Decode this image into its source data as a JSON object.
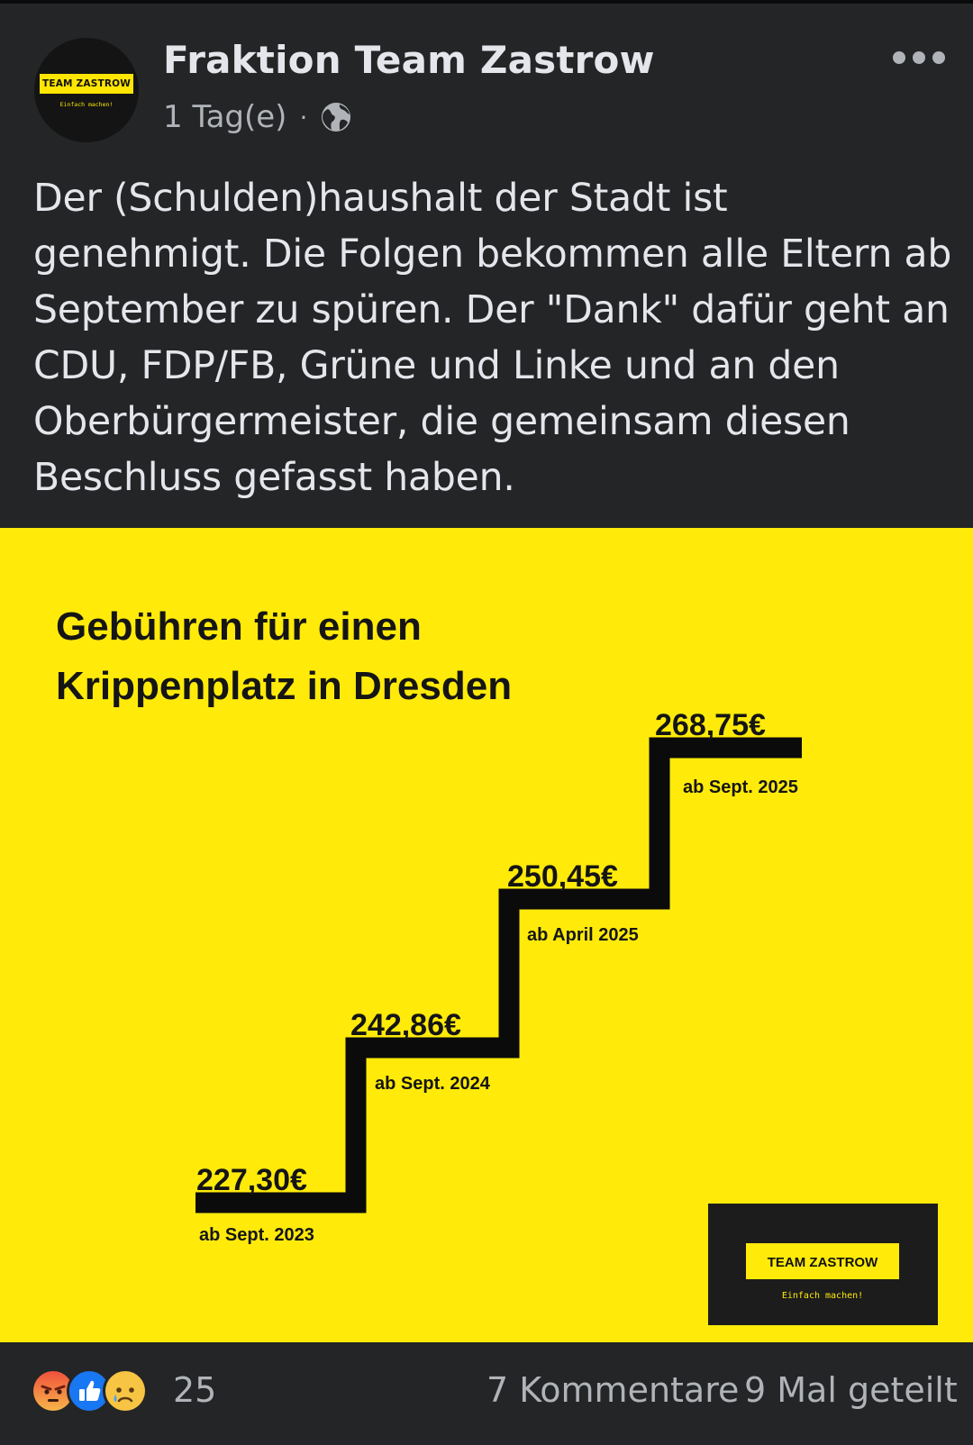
{
  "post": {
    "author": "Fraktion Team Zastrow",
    "time": "1 Tag(e)",
    "separator": "·",
    "audience_icon": "globe-icon",
    "avatar": {
      "badge": "TEAM ZASTROW",
      "tagline": "Einfach machen!"
    },
    "text": "Der (Schulden)haushalt der Stadt ist genehmigt. Die Folgen bekommen alle Eltern ab September zu spüren. Der \"Dank\" dafür geht an CDU, FDP/FB, Grüne und Linke und an den Oberbürgermeister, die gemeinsam diesen Beschluss gefasst haben."
  },
  "graphic": {
    "title_line1": "Gebühren für einen",
    "title_line2": "Krippenplatz in Dresden",
    "logo_badge": "TEAM ZASTROW",
    "logo_tagline": "Einfach machen!",
    "background": "#ffea0a",
    "steps": [
      {
        "price": "227,30€",
        "date": "ab Sept. 2023"
      },
      {
        "price": "242,86€",
        "date": "ab Sept. 2024"
      },
      {
        "price": "250,45€",
        "date": "ab April 2025"
      },
      {
        "price": "268,75€",
        "date": "ab Sept. 2025"
      }
    ]
  },
  "footer": {
    "reaction_icons": [
      "angry-icon",
      "like-icon",
      "sad-icon"
    ],
    "reaction_count": "25",
    "comments": "7 Kommentare",
    "shares": "9 Mal geteilt"
  }
}
